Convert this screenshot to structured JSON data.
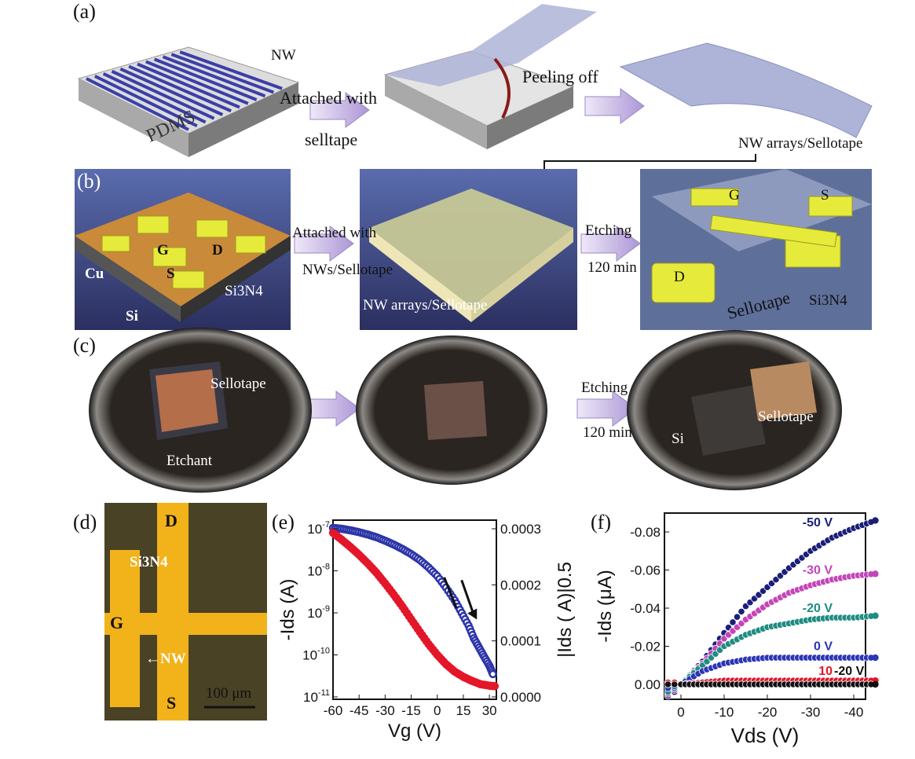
{
  "panel_labels": {
    "a": "(a)",
    "b": "(b)",
    "c": "(c)",
    "d": "(d)",
    "e": "(e)",
    "f": "(f)"
  },
  "panel_a": {
    "nw": "NW",
    "pdms": "PDMS",
    "attached1": "Attached with",
    "attached2": "selltape",
    "peeling": "Peeling off",
    "nw_arrays": "NW arrays/Sellotape"
  },
  "panel_b": {
    "g": "G",
    "d": "D",
    "s": "S",
    "cu": "Cu",
    "si": "Si",
    "si3n4": "Si3N4",
    "attached1": "Attached with",
    "attached2": "NWs/Sellotape",
    "nw_arrays": "NW arrays/Sellotape",
    "etching1": "Etching",
    "etching2": "120 min",
    "g2": "G",
    "s2": "S",
    "d2": "D",
    "sellotape": "Sellotape",
    "si3n4_2": "Si3N4"
  },
  "panel_c": {
    "sellotape": "Sellotape",
    "etchant": "Etchant",
    "etching1": "Etching",
    "etching2": "120 min",
    "si": "Si",
    "sellotape2": "Sellotape"
  },
  "panel_d": {
    "d": "D",
    "si3n4": "Si3N4",
    "g": "G",
    "nw": "←NW",
    "s": "S",
    "scale": "100 μm"
  },
  "colors": {
    "arrow": "#b9a6de",
    "nw_blue": "#3b3fa8",
    "electrode": "#e6ea3a",
    "red": "#e4162a",
    "blue": "#2c35a8"
  },
  "chart_data": [
    {
      "type": "scatter",
      "panel": "e",
      "xlabel": "Vg (V)",
      "ylabel": "-Ids (A)",
      "ylabel_right": "|Ids ( A)|0.5",
      "yscale": "log",
      "xlim": [
        -60,
        34
      ],
      "ylim": [
        1e-11,
        1.1e-07
      ],
      "xticks": [
        "-60",
        "-45",
        "-30",
        "-15",
        "0",
        "15",
        "30"
      ],
      "yticks": [
        "10-7",
        "10-8",
        "10-9",
        "10-10",
        "10-11"
      ],
      "yticks_right": [
        "0.0003",
        "0.0002",
        "0.0001",
        "0.0000"
      ],
      "series": [
        {
          "color": "#2c35a8",
          "filled": false,
          "x": [
            -60,
            -55,
            -50,
            -45,
            -40,
            -35,
            -30,
            -25,
            -20,
            -15,
            -10,
            -5,
            0,
            5,
            10,
            14,
            18,
            21,
            24,
            27,
            30,
            32
          ],
          "y": [
            1.05e-07,
            1e-07,
            9.2e-08,
            8.3e-08,
            7.3e-08,
            6.3e-08,
            5.2e-08,
            4.2e-08,
            3.3e-08,
            2.5e-08,
            1.8e-08,
            1.2e-08,
            7.5e-09,
            4e-09,
            2e-09,
            1e-09,
            5e-10,
            2.5e-10,
            1.5e-10,
            9e-11,
            5.5e-11,
            3.5e-11
          ]
        },
        {
          "color": "#e4162a",
          "filled": true,
          "x": [
            -60,
            -55,
            -50,
            -45,
            -40,
            -35,
            -30,
            -25,
            -20,
            -15,
            -10,
            -5,
            0,
            5,
            10,
            15,
            20,
            25,
            30,
            33
          ],
          "y": [
            8e-08,
            5.5e-08,
            3.7e-08,
            2.4e-08,
            1.5e-08,
            9e-09,
            5e-09,
            2.7e-09,
            1.4e-09,
            7e-10,
            3.5e-10,
            1.8e-10,
            1e-10,
            6e-11,
            4e-11,
            3e-11,
            2.4e-11,
            2e-11,
            1.85e-11,
            1.8e-11
          ]
        }
      ]
    },
    {
      "type": "scatter",
      "panel": "f",
      "xlabel": "Vds (V)",
      "ylabel": "-Ids (μA)",
      "xlim": [
        4,
        -45
      ],
      "ylim": [
        0.008,
        -0.09
      ],
      "xticks": [
        "0",
        "-10",
        "-20",
        "-30",
        "-40"
      ],
      "yticks": [
        "-0.08",
        "-0.06",
        "-0.04",
        "-0.02",
        "0.00"
      ],
      "x": [
        3,
        1.5,
        0,
        -5,
        -10,
        -15,
        -20,
        -25,
        -30,
        -35,
        -40,
        -45
      ],
      "series": [
        {
          "name": "-50 V",
          "color": "#1b1f78",
          "y": [
            0.006,
            0.004,
            0,
            -0.012,
            -0.027,
            -0.041,
            -0.051,
            -0.061,
            -0.07,
            -0.077,
            -0.082,
            -0.086
          ]
        },
        {
          "name": "-30 V",
          "color": "#c445b8",
          "y": [
            0.005,
            0.003,
            0,
            -0.011,
            -0.024,
            -0.034,
            -0.042,
            -0.048,
            -0.052,
            -0.055,
            -0.057,
            -0.058
          ]
        },
        {
          "name": "-20 V",
          "color": "#1f8c82",
          "y": [
            0.004,
            0.002,
            0,
            -0.01,
            -0.02,
            -0.026,
            -0.03,
            -0.032,
            -0.034,
            -0.035,
            -0.035,
            -0.036
          ]
        },
        {
          "name": "0 V",
          "color": "#2c35b4",
          "y": [
            0.002,
            0.001,
            0,
            -0.007,
            -0.011,
            -0.013,
            -0.014,
            -0.014,
            -0.014,
            -0.014,
            -0.014,
            -0.014
          ]
        },
        {
          "name": "10",
          "color": "#e4162a",
          "y": [
            -0.001,
            -0.001,
            0,
            -0.001,
            -0.002,
            -0.002,
            -0.002,
            -0.002,
            -0.002,
            -0.002,
            -0.002,
            -0.002
          ]
        },
        {
          "name": "-20 V",
          "color": "#111111",
          "y": [
            0,
            0,
            0,
            0,
            0,
            0,
            0,
            0,
            0,
            0,
            0,
            0
          ]
        }
      ]
    }
  ]
}
